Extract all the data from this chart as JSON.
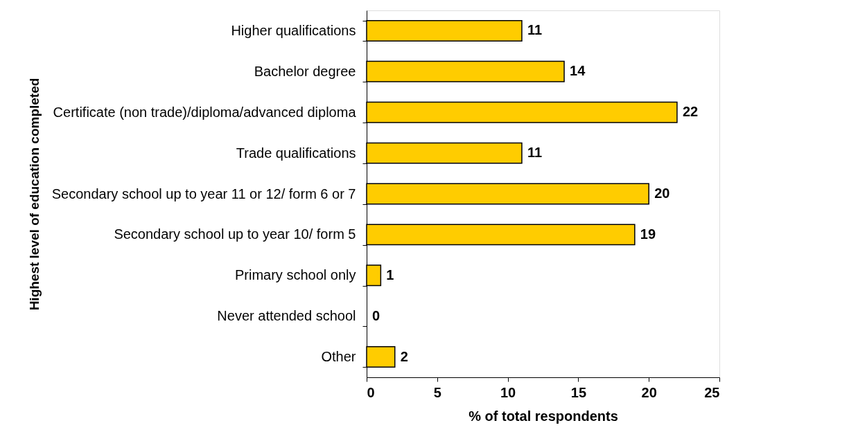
{
  "chart_data": {
    "type": "bar",
    "orientation": "horizontal",
    "xlabel": "% of total respondents",
    "ylabel": "Highest level of education completed",
    "categories": [
      "Higher qualifications",
      "Bachelor degree",
      "Certificate (non trade)/diploma/advanced diploma",
      "Trade qualifications",
      "Secondary school up to year 11 or 12/ form 6 or 7",
      "Secondary school up to year 10/ form 5",
      "Primary school only",
      "Never attended school",
      "Other"
    ],
    "values": [
      11,
      14,
      22,
      11,
      20,
      19,
      1,
      0,
      2
    ],
    "color": "#ffcc00",
    "xlim": [
      0,
      25
    ],
    "xticks": [
      0,
      5,
      10,
      15,
      20,
      25
    ],
    "grid": false,
    "legend": false,
    "data_labels": true
  }
}
